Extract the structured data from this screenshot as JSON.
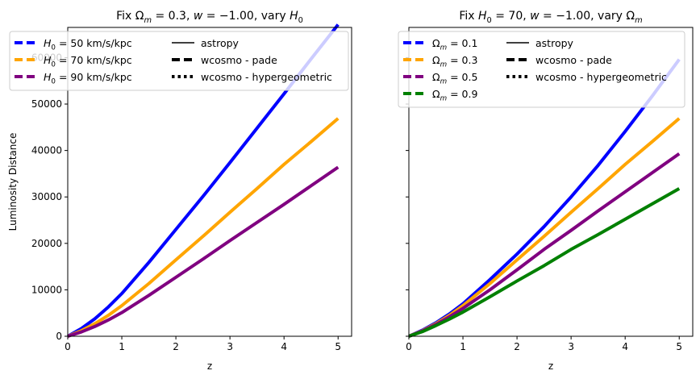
{
  "chart_data": [
    {
      "type": "line",
      "title": "Fix Ωm = 0.3, w = −1.00, vary H0",
      "title_parts": [
        "Fix ",
        "Ω",
        "m",
        " = 0.3, ",
        "w",
        " = −1.00, vary ",
        "H",
        "0"
      ],
      "xlabel": "z",
      "ylabel": "Luminosity Distance",
      "xlim": [
        0,
        5.25
      ],
      "ylim": [
        0,
        66500
      ],
      "xticks": [
        0,
        1,
        2,
        3,
        4,
        5
      ],
      "xtick_labels": [
        "0",
        "1",
        "2",
        "3",
        "4",
        "5"
      ],
      "yticks": [
        0,
        10000,
        20000,
        30000,
        40000,
        50000,
        60000
      ],
      "ytick_labels": [
        "0",
        "10000",
        "20000",
        "30000",
        "40000",
        "50000",
        "60000"
      ],
      "grid": false,
      "legend_position": "top-left",
      "x": [
        0,
        0.25,
        0.5,
        0.75,
        1,
        1.5,
        2,
        2.5,
        3,
        3.5,
        4,
        4.5,
        5
      ],
      "series": [
        {
          "name": "H0 = 50 km/s/kpc",
          "legend_parts": [
            "H",
            "0",
            " = 50 km/s/kpc"
          ],
          "color": "#0000ff",
          "values": [
            0,
            1650,
            3750,
            6300,
            9200,
            15900,
            23000,
            30100,
            37400,
            44800,
            52200,
            59700,
            67100
          ]
        },
        {
          "name": "H0 = 70 km/s/kpc",
          "legend_parts": [
            "H",
            "0",
            " = 70 km/s/kpc"
          ],
          "color": "#ffa500",
          "values": [
            0,
            1180,
            2700,
            4500,
            6600,
            11350,
            16450,
            21500,
            26700,
            31800,
            37000,
            41900,
            46900
          ]
        },
        {
          "name": "H0 = 90 km/s/kpc",
          "legend_parts": [
            "H",
            "0",
            " = 90 km/s/kpc"
          ],
          "color": "#800080",
          "values": [
            0,
            920,
            2100,
            3500,
            5100,
            8800,
            12700,
            16600,
            20600,
            24500,
            28400,
            32400,
            36400
          ]
        }
      ],
      "style_legend": [
        {
          "label": "astropy",
          "dash": "solid"
        },
        {
          "label": "wcosmo - pade",
          "dash": "dashed"
        },
        {
          "label": "wcosmo - hypergeometric",
          "dash": "dotted"
        }
      ]
    },
    {
      "type": "line",
      "title": "Fix H0 = 70, w = −1.00, vary Ωm",
      "title_parts": [
        "Fix ",
        "H",
        "0",
        " = 70, ",
        "w",
        " = −1.00, vary ",
        "Ω",
        "m"
      ],
      "xlabel": "z",
      "ylabel": "",
      "xlim": [
        0,
        5.25
      ],
      "ylim": [
        0,
        66500
      ],
      "xticks": [
        0,
        1,
        2,
        3,
        4,
        5
      ],
      "xtick_labels": [
        "0",
        "1",
        "2",
        "3",
        "4",
        "5"
      ],
      "yticks": [
        0,
        10000,
        20000,
        30000,
        40000,
        50000,
        60000
      ],
      "ytick_labels": [],
      "grid": false,
      "legend_position": "top-left",
      "x": [
        0,
        0.25,
        0.5,
        0.75,
        1,
        1.5,
        2,
        2.5,
        3,
        3.5,
        4,
        4.5,
        5
      ],
      "series": [
        {
          "name": "Ωm = 0.1",
          "legend_parts": [
            "Ω",
            "m",
            " = 0.1"
          ],
          "color": "#0000ff",
          "values": [
            0,
            1300,
            2900,
            4800,
            7000,
            12200,
            17700,
            23600,
            30000,
            36800,
            44100,
            51700,
            59600
          ]
        },
        {
          "name": "Ωm = 0.3",
          "legend_parts": [
            "Ω",
            "m",
            " = 0.3"
          ],
          "color": "#ffa500",
          "values": [
            0,
            1180,
            2700,
            4500,
            6600,
            11350,
            16450,
            21500,
            26700,
            31800,
            37000,
            41900,
            46900
          ]
        },
        {
          "name": "Ωm = 0.5",
          "legend_parts": [
            "Ω",
            "m",
            " = 0.5"
          ],
          "color": "#800080",
          "values": [
            0,
            1120,
            2550,
            4200,
            6000,
            10000,
            14300,
            18700,
            22800,
            27000,
            31100,
            35200,
            39300
          ]
        },
        {
          "name": "Ωm = 0.9",
          "legend_parts": [
            "Ω",
            "m",
            " = 0.9"
          ],
          "color": "#008000",
          "values": [
            0,
            1000,
            2300,
            3700,
            5200,
            8500,
            11900,
            15200,
            18700,
            21900,
            25200,
            28500,
            31800
          ]
        }
      ],
      "style_legend": [
        {
          "label": "astropy",
          "dash": "solid"
        },
        {
          "label": "wcosmo - pade",
          "dash": "dashed"
        },
        {
          "label": "wcosmo - hypergeometric",
          "dash": "dotted"
        }
      ]
    }
  ]
}
